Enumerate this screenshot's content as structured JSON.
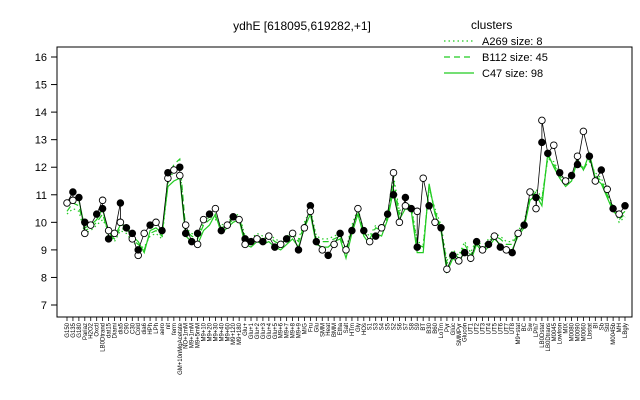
{
  "chart_data": {
    "type": "line",
    "title": "ydhE [618095,619282,+1]",
    "xlabel": "",
    "ylabel": "",
    "ylim": [
      7,
      16
    ],
    "yticks": [
      7,
      8,
      9,
      10,
      11,
      12,
      13,
      14,
      15,
      16
    ],
    "grid": false,
    "legend_position": "top-right",
    "legend": {
      "title": "clusters",
      "entries": [
        {
          "label": "A269 size: 8",
          "style": "dotted",
          "color": "#22cc22"
        },
        {
          "label": "B112 size: 45",
          "style": "dashed",
          "color": "#22cc22"
        },
        {
          "label": "C47 size: 98",
          "style": "solid",
          "color": "#22cc22"
        }
      ]
    },
    "x_tick_labels": [
      "G150",
      "G135",
      "G180",
      "Pariaz",
      "H2O2",
      "Oxctl",
      "LB0Dtrand",
      "dat15",
      "Diami",
      "dia5",
      "C90",
      "C30",
      "Cold",
      "dia6",
      "HPh",
      "LPh",
      "aero",
      "nit",
      "ferm",
      "GM+10nMgAcetate",
      "NO+1mM",
      "M9+1mM",
      "M9+5mM",
      "M9+10",
      "M9+20",
      "M9+30",
      "M9+40",
      "M9+60",
      "M9+120",
      "M9+180",
      "Glu+",
      "Glu+1",
      "Glu+2",
      "Glu+3",
      "Glu+4",
      "Glu+5",
      "M9+6",
      "M9+7",
      "M9+8",
      "M9+9",
      "M/G",
      "Fru",
      "Glu",
      "SMM",
      "Heat",
      "BMM",
      "Etha",
      "Salt",
      "HTm",
      "Gly",
      "HOs",
      "S1",
      "S3",
      "S4",
      "S5",
      "S2",
      "S6",
      "S7",
      "S8",
      "S9",
      "BT",
      "B30",
      "B60",
      "LoTm",
      "Pyr",
      "Gluc",
      "SMMPyr",
      "Glucon",
      "UT1",
      "UT2",
      "UT3",
      "UT4",
      "UT5",
      "UT6",
      "UT7",
      "UT8",
      "M9+stat",
      "BC",
      "Sw",
      "LPh7",
      "LB0Dstat",
      "LB0Dtrans",
      "M0045",
      "LowIron",
      "MIX",
      "M0080",
      "M0090",
      "M0060",
      "Lbstat",
      "BI",
      "Sb",
      "Std",
      "M0045b",
      "MH",
      "LBgly"
    ],
    "series": [
      {
        "name": "C47 size: 98",
        "values": [
          10.6,
          10.9,
          10.8,
          9.8,
          9.9,
          10.1,
          10.5,
          9.5,
          9.5,
          9.9,
          9.9,
          9.5,
          9.3,
          8.9,
          9.7,
          9.8,
          9.6,
          11.3,
          11.5,
          11.6,
          9.5,
          9.3,
          9.2,
          9.7,
          9.9,
          10.3,
          9.6,
          9.8,
          10.0,
          10.1,
          9.2,
          9.1,
          9.3,
          9.2,
          9.3,
          9.1,
          9.0,
          9.2,
          9.4,
          9.1,
          9.8,
          10.3,
          9.2,
          9.1,
          9.1,
          9.3,
          9.4,
          8.7,
          9.6,
          10.3,
          9.5,
          9.2,
          9.6,
          9.5,
          10.1,
          11.2,
          10.1,
          10.5,
          10.4,
          8.9,
          8.9,
          11.4,
          10.3,
          9.7,
          8.2,
          8.7,
          8.5,
          9.0,
          8.6,
          9.2,
          8.9,
          9.1,
          9.4,
          9.2,
          9.0,
          9.0,
          9.5,
          9.8,
          10.8,
          11.0,
          10.6,
          12.5,
          12.0,
          11.6,
          11.3,
          11.5,
          12.3,
          11.9,
          12.5,
          11.6,
          11.4,
          10.9,
          10.4,
          10.2,
          10.4
        ]
      },
      {
        "name": "B112 size: 45",
        "values": [
          10.4,
          10.7,
          10.6,
          9.7,
          9.8,
          10.0,
          10.3,
          9.6,
          9.4,
          9.8,
          9.7,
          9.4,
          9.2,
          9.0,
          9.6,
          9.7,
          9.5,
          11.6,
          12.1,
          12.3,
          9.7,
          9.5,
          9.4,
          9.9,
          10.1,
          10.2,
          9.8,
          9.9,
          10.1,
          10.2,
          9.4,
          9.3,
          9.5,
          9.4,
          9.5,
          9.3,
          9.2,
          9.4,
          9.5,
          9.3,
          9.9,
          10.4,
          9.4,
          9.3,
          9.3,
          9.4,
          9.5,
          8.9,
          9.8,
          10.4,
          9.6,
          9.4,
          9.8,
          9.7,
          10.2,
          11.5,
          10.3,
          10.6,
          10.5,
          9.2,
          9.1,
          11.3,
          10.4,
          9.8,
          8.5,
          8.9,
          8.7,
          9.2,
          8.8,
          9.3,
          9.0,
          9.3,
          9.5,
          9.4,
          9.2,
          9.2,
          9.6,
          9.9,
          10.9,
          11.1,
          10.8,
          12.4,
          12.1,
          11.7,
          11.4,
          11.6,
          12.2,
          11.9,
          12.3,
          11.7,
          11.5,
          11.0,
          10.5,
          10.1,
          10.3
        ]
      },
      {
        "name": "A269 size: 8",
        "values": [
          10.3,
          10.5,
          10.4,
          9.6,
          9.7,
          9.9,
          10.1,
          9.7,
          9.3,
          9.7,
          9.6,
          9.3,
          9.1,
          9.1,
          9.5,
          9.6,
          9.4,
          11.4,
          11.9,
          12.0,
          9.8,
          9.6,
          9.5,
          10.0,
          10.2,
          10.1,
          9.9,
          10.0,
          10.2,
          10.3,
          9.5,
          9.4,
          9.6,
          9.5,
          9.6,
          9.4,
          9.3,
          9.5,
          9.6,
          9.4,
          10.0,
          10.5,
          9.5,
          9.4,
          9.4,
          9.5,
          9.6,
          9.0,
          9.9,
          10.5,
          9.7,
          9.5,
          9.9,
          9.8,
          10.3,
          11.7,
          10.4,
          10.7,
          10.6,
          9.3,
          9.2,
          11.2,
          10.5,
          9.9,
          8.6,
          9.0,
          8.8,
          9.3,
          8.9,
          9.4,
          9.1,
          9.4,
          9.6,
          9.5,
          9.3,
          9.3,
          9.7,
          10.0,
          11.0,
          11.2,
          10.9,
          12.3,
          12.2,
          11.8,
          11.5,
          11.7,
          12.1,
          12.0,
          12.2,
          11.8,
          11.6,
          11.1,
          10.6,
          10.0,
          10.2
        ]
      }
    ],
    "points": [
      [
        0,
        10.7
      ],
      [
        1,
        11.1
      ],
      [
        1,
        10.8
      ],
      [
        2,
        10.9
      ],
      [
        3,
        9.6
      ],
      [
        3,
        10.0
      ],
      [
        4,
        9.9
      ],
      [
        5,
        10.3
      ],
      [
        6,
        10.8
      ],
      [
        6,
        10.5
      ],
      [
        7,
        9.7
      ],
      [
        7,
        9.4
      ],
      [
        8,
        9.6
      ],
      [
        9,
        10.7
      ],
      [
        9,
        10.0
      ],
      [
        10,
        9.8
      ],
      [
        11,
        9.4
      ],
      [
        11,
        9.6
      ],
      [
        12,
        8.8
      ],
      [
        12,
        9.0
      ],
      [
        13,
        9.6
      ],
      [
        14,
        9.9
      ],
      [
        15,
        10.0
      ],
      [
        16,
        9.7
      ],
      [
        17,
        11.6
      ],
      [
        17,
        11.8
      ],
      [
        18,
        11.9
      ],
      [
        19,
        12.0
      ],
      [
        19,
        11.7
      ],
      [
        20,
        9.6
      ],
      [
        20,
        9.9
      ],
      [
        21,
        9.3
      ],
      [
        22,
        9.2
      ],
      [
        22,
        9.6
      ],
      [
        23,
        10.1
      ],
      [
        24,
        10.3
      ],
      [
        25,
        10.5
      ],
      [
        26,
        9.7
      ],
      [
        27,
        9.9
      ],
      [
        28,
        10.2
      ],
      [
        29,
        10.1
      ],
      [
        30,
        9.4
      ],
      [
        30,
        9.2
      ],
      [
        31,
        9.3
      ],
      [
        32,
        9.4
      ],
      [
        33,
        9.3
      ],
      [
        34,
        9.5
      ],
      [
        35,
        9.1
      ],
      [
        36,
        9.2
      ],
      [
        37,
        9.4
      ],
      [
        38,
        9.6
      ],
      [
        39,
        9.0
      ],
      [
        40,
        9.8
      ],
      [
        41,
        10.6
      ],
      [
        41,
        10.4
      ],
      [
        42,
        9.3
      ],
      [
        43,
        9.0
      ],
      [
        44,
        8.8
      ],
      [
        45,
        9.2
      ],
      [
        46,
        9.6
      ],
      [
        47,
        9.0
      ],
      [
        48,
        9.7
      ],
      [
        49,
        10.5
      ],
      [
        50,
        9.7
      ],
      [
        51,
        9.3
      ],
      [
        52,
        9.5
      ],
      [
        53,
        9.8
      ],
      [
        54,
        10.3
      ],
      [
        55,
        11.8
      ],
      [
        55,
        11.0
      ],
      [
        56,
        10.0
      ],
      [
        57,
        10.9
      ],
      [
        57,
        10.6
      ],
      [
        58,
        10.5
      ],
      [
        59,
        10.4
      ],
      [
        59,
        9.1
      ],
      [
        60,
        11.6
      ],
      [
        61,
        10.6
      ],
      [
        62,
        10.0
      ],
      [
        63,
        9.8
      ],
      [
        64,
        8.3
      ],
      [
        65,
        8.8
      ],
      [
        66,
        8.6
      ],
      [
        67,
        8.9
      ],
      [
        68,
        8.7
      ],
      [
        69,
        9.3
      ],
      [
        70,
        9.0
      ],
      [
        71,
        9.2
      ],
      [
        72,
        9.5
      ],
      [
        73,
        9.1
      ],
      [
        74,
        9.0
      ],
      [
        75,
        8.9
      ],
      [
        76,
        9.6
      ],
      [
        77,
        9.9
      ],
      [
        78,
        11.1
      ],
      [
        79,
        10.9
      ],
      [
        79,
        10.5
      ],
      [
        80,
        12.9
      ],
      [
        80,
        13.7
      ],
      [
        81,
        12.5
      ],
      [
        82,
        12.8
      ],
      [
        83,
        11.8
      ],
      [
        84,
        11.5
      ],
      [
        85,
        11.7
      ],
      [
        86,
        12.4
      ],
      [
        86,
        12.1
      ],
      [
        87,
        13.3
      ],
      [
        88,
        12.4
      ],
      [
        89,
        11.5
      ],
      [
        90,
        11.9
      ],
      [
        91,
        11.2
      ],
      [
        92,
        10.5
      ],
      [
        93,
        10.3
      ],
      [
        94,
        10.6
      ]
    ]
  }
}
